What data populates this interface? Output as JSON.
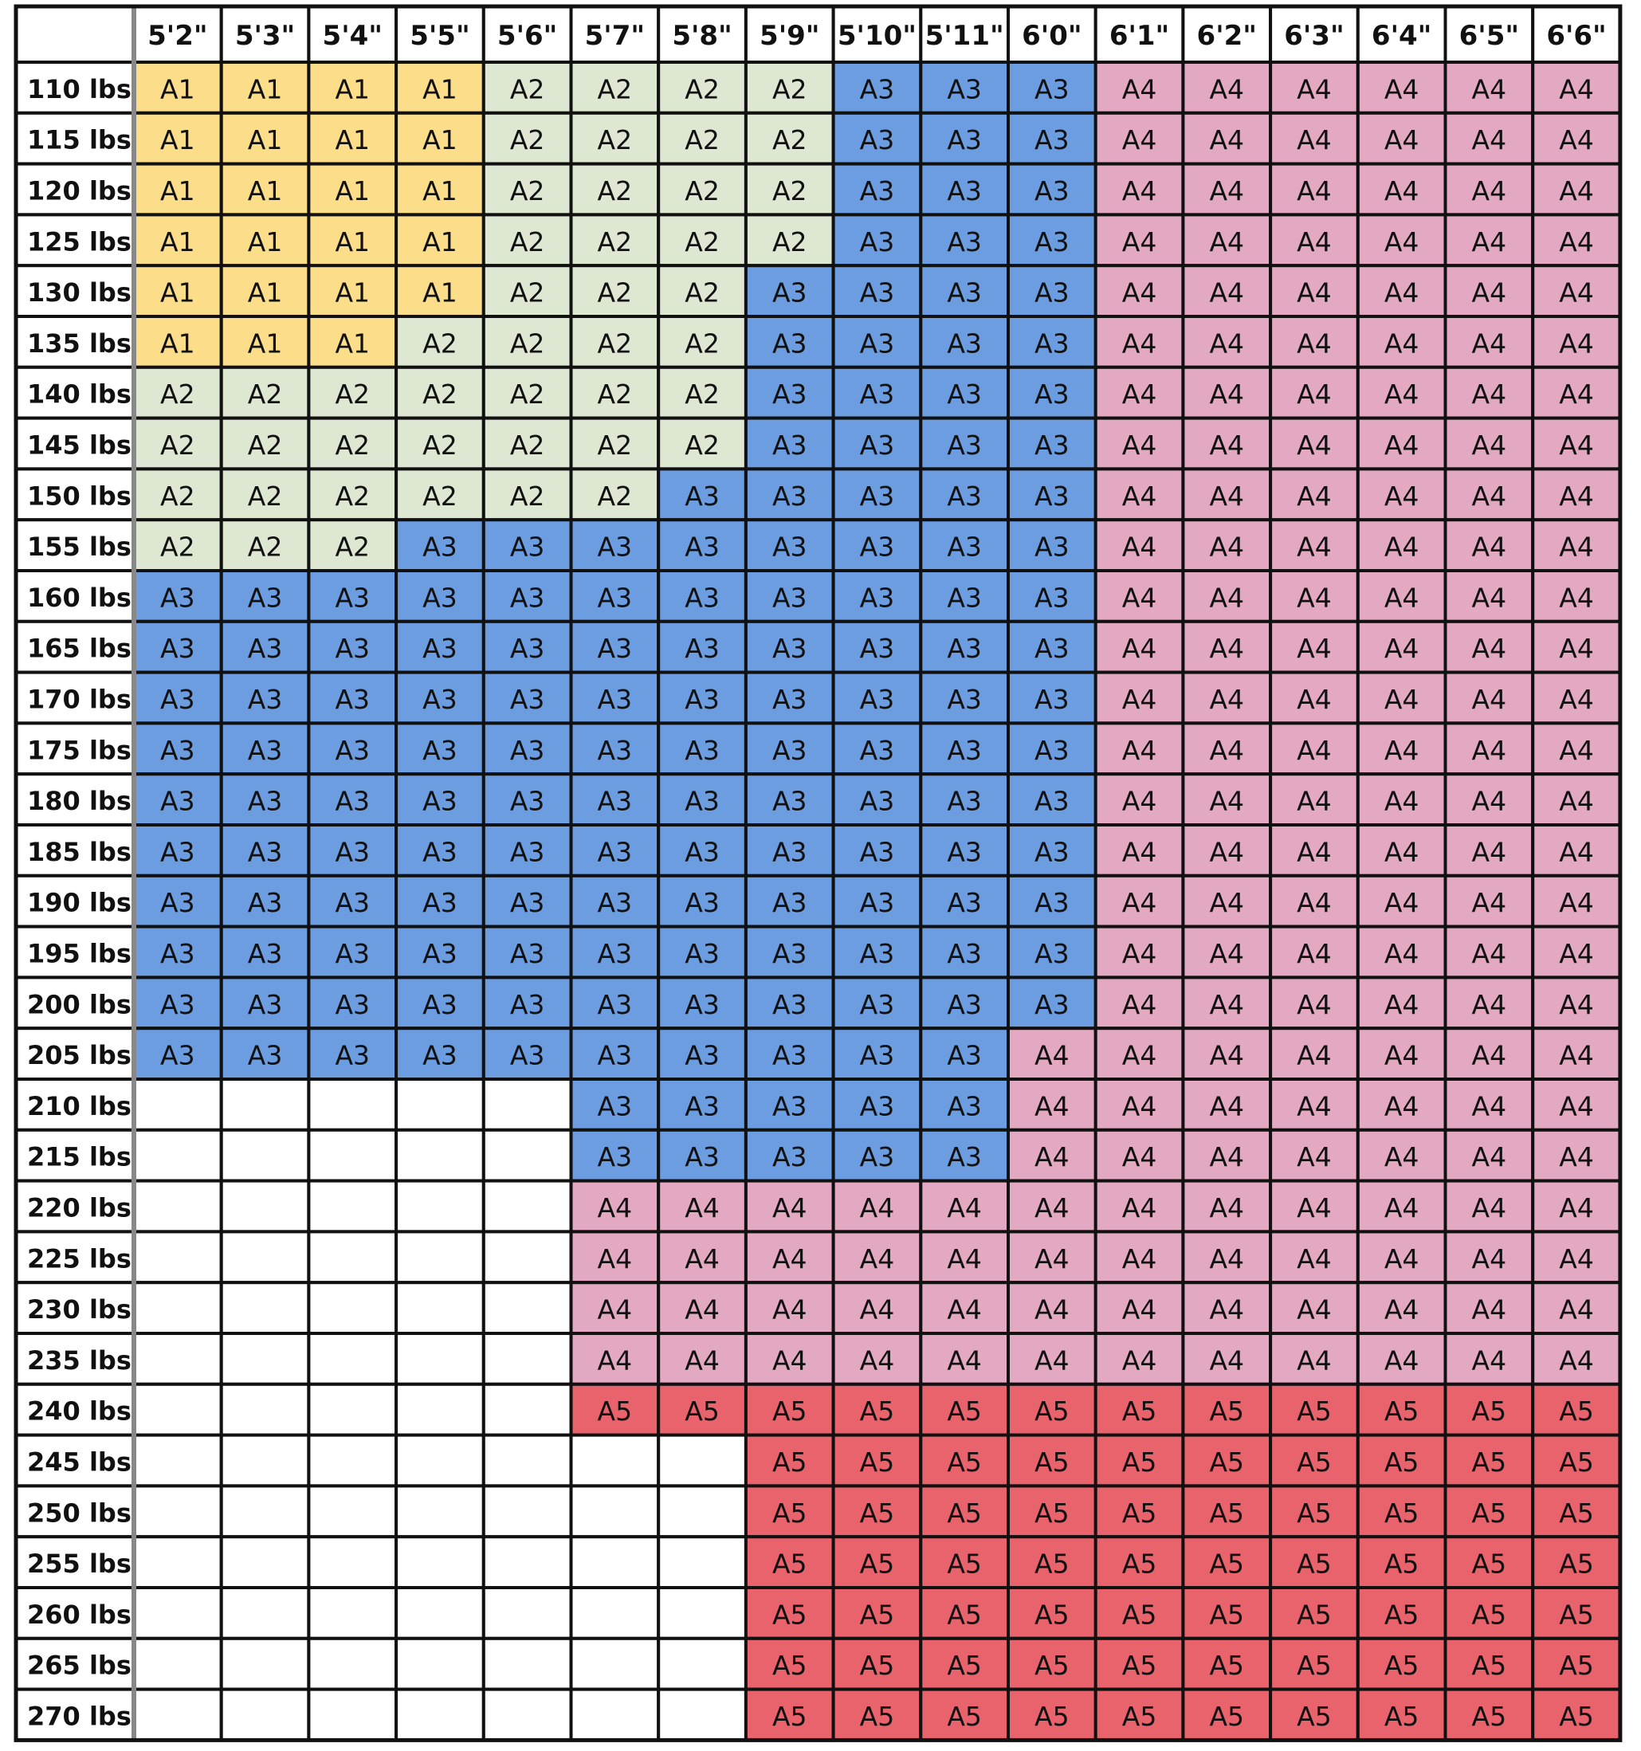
{
  "chart_data": {
    "type": "table",
    "columns": [
      "5'2\"",
      "5'3\"",
      "5'4\"",
      "5'5\"",
      "5'6\"",
      "5'7\"",
      "5'8\"",
      "5'9\"",
      "5'10\"",
      "5'11\"",
      "6'0\"",
      "6'1\"",
      "6'2\"",
      "6'3\"",
      "6'4\"",
      "6'5\"",
      "6'6\""
    ],
    "rows": [
      {
        "label": "110 lbs",
        "sizes": [
          "A1",
          "A1",
          "A1",
          "A1",
          "A2",
          "A2",
          "A2",
          "A2",
          "A3",
          "A3",
          "A3",
          "A4",
          "A4",
          "A4",
          "A4",
          "A4",
          "A4"
        ]
      },
      {
        "label": "115 lbs",
        "sizes": [
          "A1",
          "A1",
          "A1",
          "A1",
          "A2",
          "A2",
          "A2",
          "A2",
          "A3",
          "A3",
          "A3",
          "A4",
          "A4",
          "A4",
          "A4",
          "A4",
          "A4"
        ]
      },
      {
        "label": "120 lbs",
        "sizes": [
          "A1",
          "A1",
          "A1",
          "A1",
          "A2",
          "A2",
          "A2",
          "A2",
          "A3",
          "A3",
          "A3",
          "A4",
          "A4",
          "A4",
          "A4",
          "A4",
          "A4"
        ]
      },
      {
        "label": "125 lbs",
        "sizes": [
          "A1",
          "A1",
          "A1",
          "A1",
          "A2",
          "A2",
          "A2",
          "A2",
          "A3",
          "A3",
          "A3",
          "A4",
          "A4",
          "A4",
          "A4",
          "A4",
          "A4"
        ]
      },
      {
        "label": "130 lbs",
        "sizes": [
          "A1",
          "A1",
          "A1",
          "A1",
          "A2",
          "A2",
          "A2",
          "A3",
          "A3",
          "A3",
          "A3",
          "A4",
          "A4",
          "A4",
          "A4",
          "A4",
          "A4"
        ]
      },
      {
        "label": "135 lbs",
        "sizes": [
          "A1",
          "A1",
          "A1",
          "A2",
          "A2",
          "A2",
          "A2",
          "A3",
          "A3",
          "A3",
          "A3",
          "A4",
          "A4",
          "A4",
          "A4",
          "A4",
          "A4"
        ]
      },
      {
        "label": "140 lbs",
        "sizes": [
          "A2",
          "A2",
          "A2",
          "A2",
          "A2",
          "A2",
          "A2",
          "A3",
          "A3",
          "A3",
          "A3",
          "A4",
          "A4",
          "A4",
          "A4",
          "A4",
          "A4"
        ]
      },
      {
        "label": "145 lbs",
        "sizes": [
          "A2",
          "A2",
          "A2",
          "A2",
          "A2",
          "A2",
          "A2",
          "A3",
          "A3",
          "A3",
          "A3",
          "A4",
          "A4",
          "A4",
          "A4",
          "A4",
          "A4"
        ]
      },
      {
        "label": "150 lbs",
        "sizes": [
          "A2",
          "A2",
          "A2",
          "A2",
          "A2",
          "A2",
          "A3",
          "A3",
          "A3",
          "A3",
          "A3",
          "A4",
          "A4",
          "A4",
          "A4",
          "A4",
          "A4"
        ]
      },
      {
        "label": "155 lbs",
        "sizes": [
          "A2",
          "A2",
          "A2",
          "A3",
          "A3",
          "A3",
          "A3",
          "A3",
          "A3",
          "A3",
          "A3",
          "A4",
          "A4",
          "A4",
          "A4",
          "A4",
          "A4"
        ]
      },
      {
        "label": "160 lbs",
        "sizes": [
          "A3",
          "A3",
          "A3",
          "A3",
          "A3",
          "A3",
          "A3",
          "A3",
          "A3",
          "A3",
          "A3",
          "A4",
          "A4",
          "A4",
          "A4",
          "A4",
          "A4"
        ]
      },
      {
        "label": "165 lbs",
        "sizes": [
          "A3",
          "A3",
          "A3",
          "A3",
          "A3",
          "A3",
          "A3",
          "A3",
          "A3",
          "A3",
          "A3",
          "A4",
          "A4",
          "A4",
          "A4",
          "A4",
          "A4"
        ]
      },
      {
        "label": "170 lbs",
        "sizes": [
          "A3",
          "A3",
          "A3",
          "A3",
          "A3",
          "A3",
          "A3",
          "A3",
          "A3",
          "A3",
          "A3",
          "A4",
          "A4",
          "A4",
          "A4",
          "A4",
          "A4"
        ]
      },
      {
        "label": "175 lbs",
        "sizes": [
          "A3",
          "A3",
          "A3",
          "A3",
          "A3",
          "A3",
          "A3",
          "A3",
          "A3",
          "A3",
          "A3",
          "A4",
          "A4",
          "A4",
          "A4",
          "A4",
          "A4"
        ]
      },
      {
        "label": "180 lbs",
        "sizes": [
          "A3",
          "A3",
          "A3",
          "A3",
          "A3",
          "A3",
          "A3",
          "A3",
          "A3",
          "A3",
          "A3",
          "A4",
          "A4",
          "A4",
          "A4",
          "A4",
          "A4"
        ]
      },
      {
        "label": "185 lbs",
        "sizes": [
          "A3",
          "A3",
          "A3",
          "A3",
          "A3",
          "A3",
          "A3",
          "A3",
          "A3",
          "A3",
          "A3",
          "A4",
          "A4",
          "A4",
          "A4",
          "A4",
          "A4"
        ]
      },
      {
        "label": "190 lbs",
        "sizes": [
          "A3",
          "A3",
          "A3",
          "A3",
          "A3",
          "A3",
          "A3",
          "A3",
          "A3",
          "A3",
          "A3",
          "A4",
          "A4",
          "A4",
          "A4",
          "A4",
          "A4"
        ]
      },
      {
        "label": "195 lbs",
        "sizes": [
          "A3",
          "A3",
          "A3",
          "A3",
          "A3",
          "A3",
          "A3",
          "A3",
          "A3",
          "A3",
          "A3",
          "A4",
          "A4",
          "A4",
          "A4",
          "A4",
          "A4"
        ]
      },
      {
        "label": "200 lbs",
        "sizes": [
          "A3",
          "A3",
          "A3",
          "A3",
          "A3",
          "A3",
          "A3",
          "A3",
          "A3",
          "A3",
          "A3",
          "A4",
          "A4",
          "A4",
          "A4",
          "A4",
          "A4"
        ]
      },
      {
        "label": "205 lbs",
        "sizes": [
          "A3",
          "A3",
          "A3",
          "A3",
          "A3",
          "A3",
          "A3",
          "A3",
          "A3",
          "A3",
          "A4",
          "A4",
          "A4",
          "A4",
          "A4",
          "A4",
          "A4"
        ]
      },
      {
        "label": "210 lbs",
        "sizes": [
          "",
          "",
          "",
          "",
          "",
          "A3",
          "A3",
          "A3",
          "A3",
          "A3",
          "A4",
          "A4",
          "A4",
          "A4",
          "A4",
          "A4",
          "A4"
        ]
      },
      {
        "label": "215 lbs",
        "sizes": [
          "",
          "",
          "",
          "",
          "",
          "A3",
          "A3",
          "A3",
          "A3",
          "A3",
          "A4",
          "A4",
          "A4",
          "A4",
          "A4",
          "A4",
          "A4"
        ]
      },
      {
        "label": "220 lbs",
        "sizes": [
          "",
          "",
          "",
          "",
          "",
          "A4",
          "A4",
          "A4",
          "A4",
          "A4",
          "A4",
          "A4",
          "A4",
          "A4",
          "A4",
          "A4",
          "A4"
        ]
      },
      {
        "label": "225 lbs",
        "sizes": [
          "",
          "",
          "",
          "",
          "",
          "A4",
          "A4",
          "A4",
          "A4",
          "A4",
          "A4",
          "A4",
          "A4",
          "A4",
          "A4",
          "A4",
          "A4"
        ]
      },
      {
        "label": "230 lbs",
        "sizes": [
          "",
          "",
          "",
          "",
          "",
          "A4",
          "A4",
          "A4",
          "A4",
          "A4",
          "A4",
          "A4",
          "A4",
          "A4",
          "A4",
          "A4",
          "A4"
        ]
      },
      {
        "label": "235 lbs",
        "sizes": [
          "",
          "",
          "",
          "",
          "",
          "A4",
          "A4",
          "A4",
          "A4",
          "A4",
          "A4",
          "A4",
          "A4",
          "A4",
          "A4",
          "A4",
          "A4"
        ]
      },
      {
        "label": "240 lbs",
        "sizes": [
          "",
          "",
          "",
          "",
          "",
          "A5",
          "A5",
          "A5",
          "A5",
          "A5",
          "A5",
          "A5",
          "A5",
          "A5",
          "A5",
          "A5",
          "A5"
        ]
      },
      {
        "label": "245 lbs",
        "sizes": [
          "",
          "",
          "",
          "",
          "",
          "",
          "",
          "A5",
          "A5",
          "A5",
          "A5",
          "A5",
          "A5",
          "A5",
          "A5",
          "A5",
          "A5"
        ]
      },
      {
        "label": "250 lbs",
        "sizes": [
          "",
          "",
          "",
          "",
          "",
          "",
          "",
          "A5",
          "A5",
          "A5",
          "A5",
          "A5",
          "A5",
          "A5",
          "A5",
          "A5",
          "A5"
        ]
      },
      {
        "label": "255 lbs",
        "sizes": [
          "",
          "",
          "",
          "",
          "",
          "",
          "",
          "A5",
          "A5",
          "A5",
          "A5",
          "A5",
          "A5",
          "A5",
          "A5",
          "A5",
          "A5"
        ]
      },
      {
        "label": "260 lbs",
        "sizes": [
          "",
          "",
          "",
          "",
          "",
          "",
          "",
          "A5",
          "A5",
          "A5",
          "A5",
          "A5",
          "A5",
          "A5",
          "A5",
          "A5",
          "A5"
        ]
      },
      {
        "label": "265 lbs",
        "sizes": [
          "",
          "",
          "",
          "",
          "",
          "",
          "",
          "A5",
          "A5",
          "A5",
          "A5",
          "A5",
          "A5",
          "A5",
          "A5",
          "A5",
          "A5"
        ]
      },
      {
        "label": "270 lbs",
        "sizes": [
          "",
          "",
          "",
          "",
          "",
          "",
          "",
          "A5",
          "A5",
          "A5",
          "A5",
          "A5",
          "A5",
          "A5",
          "A5",
          "A5",
          "A5"
        ]
      }
    ],
    "size_colors": {
      "A1": "#fbdd8a",
      "A2": "#dde7d2",
      "A3": "#6b9de0",
      "A4": "#e3a9c2",
      "A5": "#e8636b"
    }
  }
}
